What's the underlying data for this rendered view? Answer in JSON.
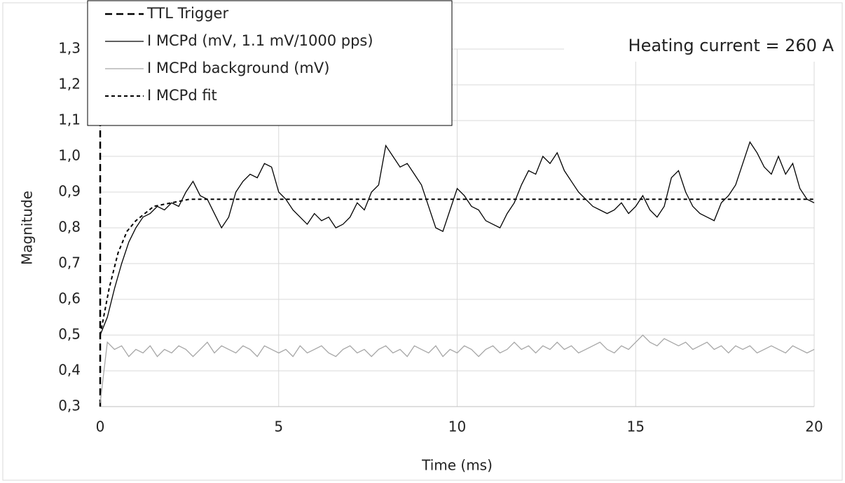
{
  "chart_data": {
    "type": "line",
    "annotation": "Heating current = 260 A",
    "xlabel": "Time (ms)",
    "ylabel": "Magnitude",
    "xlim": [
      0,
      20
    ],
    "xticks": [
      0,
      5,
      10,
      15,
      20
    ],
    "ylim": [
      0.3,
      1.3
    ],
    "yticks": [
      {
        "value": 0.3,
        "label": "0,3"
      },
      {
        "value": 0.4,
        "label": "0,4"
      },
      {
        "value": 0.5,
        "label": "0,5"
      },
      {
        "value": 0.6,
        "label": "0,6"
      },
      {
        "value": 0.7,
        "label": "0,7"
      },
      {
        "value": 0.8,
        "label": "0,8"
      },
      {
        "value": 0.9,
        "label": "0,9"
      },
      {
        "value": 1.0,
        "label": "1,0"
      },
      {
        "value": 1.1,
        "label": "1,1"
      },
      {
        "value": 1.2,
        "label": "1,2"
      },
      {
        "value": 1.3,
        "label": "1,3"
      }
    ],
    "grid": true,
    "legend": "upper left",
    "series": [
      {
        "name": "TTL Trigger",
        "color": "#000000",
        "dash": "10,6",
        "width": 2.5,
        "x": [
          0,
          0
        ],
        "values": [
          0.3,
          1.3
        ]
      },
      {
        "name": "I MCPd (mV, 1.1 mV/1000 pps)",
        "color": "#000000",
        "dash": "none",
        "width": 1.3,
        "x": [
          0,
          0.2,
          0.4,
          0.6,
          0.8,
          1,
          1.2,
          1.4,
          1.6,
          1.8,
          2,
          2.2,
          2.4,
          2.6,
          2.8,
          3,
          3.2,
          3.4,
          3.6,
          3.8,
          4,
          4.2,
          4.4,
          4.6,
          4.8,
          5,
          5.2,
          5.4,
          5.6,
          5.8,
          6,
          6.2,
          6.4,
          6.6,
          6.8,
          7,
          7.2,
          7.4,
          7.6,
          7.8,
          8,
          8.2,
          8.4,
          8.6,
          8.8,
          9,
          9.2,
          9.4,
          9.6,
          9.8,
          10,
          10.2,
          10.4,
          10.6,
          10.8,
          11,
          11.2,
          11.4,
          11.6,
          11.8,
          12,
          12.2,
          12.4,
          12.6,
          12.8,
          13,
          13.2,
          13.4,
          13.6,
          13.8,
          14,
          14.2,
          14.4,
          14.6,
          14.8,
          15,
          15.2,
          15.4,
          15.6,
          15.8,
          16,
          16.2,
          16.4,
          16.6,
          16.8,
          17,
          17.2,
          17.4,
          17.6,
          17.8,
          18,
          18.2,
          18.4,
          18.6,
          18.8,
          19,
          19.2,
          19.4,
          19.6,
          19.8,
          20
        ],
        "values": [
          0.5,
          0.55,
          0.63,
          0.7,
          0.76,
          0.8,
          0.83,
          0.84,
          0.86,
          0.85,
          0.87,
          0.86,
          0.9,
          0.93,
          0.89,
          0.88,
          0.84,
          0.8,
          0.83,
          0.9,
          0.93,
          0.95,
          0.94,
          0.98,
          0.97,
          0.9,
          0.88,
          0.85,
          0.83,
          0.81,
          0.84,
          0.82,
          0.83,
          0.8,
          0.81,
          0.83,
          0.87,
          0.85,
          0.9,
          0.92,
          1.03,
          1.0,
          0.97,
          0.98,
          0.95,
          0.92,
          0.86,
          0.8,
          0.79,
          0.85,
          0.91,
          0.89,
          0.86,
          0.85,
          0.82,
          0.81,
          0.8,
          0.84,
          0.87,
          0.92,
          0.96,
          0.95,
          1.0,
          0.98,
          1.01,
          0.96,
          0.93,
          0.9,
          0.88,
          0.86,
          0.85,
          0.84,
          0.85,
          0.87,
          0.84,
          0.86,
          0.89,
          0.85,
          0.83,
          0.86,
          0.94,
          0.96,
          0.9,
          0.86,
          0.84,
          0.83,
          0.82,
          0.87,
          0.89,
          0.92,
          0.98,
          1.04,
          1.01,
          0.97,
          0.95,
          1.0,
          0.95,
          0.98,
          0.91,
          0.88,
          0.87
        ]
      },
      {
        "name": "I MCPd background (mV)",
        "color": "#a6a6a6",
        "dash": "none",
        "width": 1.3,
        "x": [
          0,
          0.2,
          0.4,
          0.6,
          0.8,
          1,
          1.2,
          1.4,
          1.6,
          1.8,
          2,
          2.2,
          2.4,
          2.6,
          2.8,
          3,
          3.2,
          3.4,
          3.6,
          3.8,
          4,
          4.2,
          4.4,
          4.6,
          4.8,
          5,
          5.2,
          5.4,
          5.6,
          5.8,
          6,
          6.2,
          6.4,
          6.6,
          6.8,
          7,
          7.2,
          7.4,
          7.6,
          7.8,
          8,
          8.2,
          8.4,
          8.6,
          8.8,
          9,
          9.2,
          9.4,
          9.6,
          9.8,
          10,
          10.2,
          10.4,
          10.6,
          10.8,
          11,
          11.2,
          11.4,
          11.6,
          11.8,
          12,
          12.2,
          12.4,
          12.6,
          12.8,
          13,
          13.2,
          13.4,
          13.6,
          13.8,
          14,
          14.2,
          14.4,
          14.6,
          14.8,
          15,
          15.2,
          15.4,
          15.6,
          15.8,
          16,
          16.2,
          16.4,
          16.6,
          16.8,
          17,
          17.2,
          17.4,
          17.6,
          17.8,
          18,
          18.2,
          18.4,
          18.6,
          18.8,
          19,
          19.2,
          19.4,
          19.6,
          19.8,
          20
        ],
        "values": [
          0.31,
          0.48,
          0.46,
          0.47,
          0.44,
          0.46,
          0.45,
          0.47,
          0.44,
          0.46,
          0.45,
          0.47,
          0.46,
          0.44,
          0.46,
          0.48,
          0.45,
          0.47,
          0.46,
          0.45,
          0.47,
          0.46,
          0.44,
          0.47,
          0.46,
          0.45,
          0.46,
          0.44,
          0.47,
          0.45,
          0.46,
          0.47,
          0.45,
          0.44,
          0.46,
          0.47,
          0.45,
          0.46,
          0.44,
          0.46,
          0.47,
          0.45,
          0.46,
          0.44,
          0.47,
          0.46,
          0.45,
          0.47,
          0.44,
          0.46,
          0.45,
          0.47,
          0.46,
          0.44,
          0.46,
          0.47,
          0.45,
          0.46,
          0.48,
          0.46,
          0.47,
          0.45,
          0.47,
          0.46,
          0.48,
          0.46,
          0.47,
          0.45,
          0.46,
          0.47,
          0.48,
          0.46,
          0.45,
          0.47,
          0.46,
          0.48,
          0.5,
          0.48,
          0.47,
          0.49,
          0.48,
          0.47,
          0.48,
          0.46,
          0.47,
          0.48,
          0.46,
          0.47,
          0.45,
          0.47,
          0.46,
          0.47,
          0.45,
          0.46,
          0.47,
          0.46,
          0.45,
          0.47,
          0.46,
          0.45,
          0.46
        ]
      },
      {
        "name": "I MCPd fit",
        "color": "#000000",
        "dash": "5,4",
        "width": 2,
        "x": [
          0,
          0.25,
          0.5,
          0.75,
          1,
          1.5,
          2,
          2.5,
          3,
          4,
          20
        ],
        "values": [
          0.5,
          0.63,
          0.73,
          0.79,
          0.82,
          0.86,
          0.87,
          0.88,
          0.88,
          0.88,
          0.88
        ]
      }
    ]
  }
}
